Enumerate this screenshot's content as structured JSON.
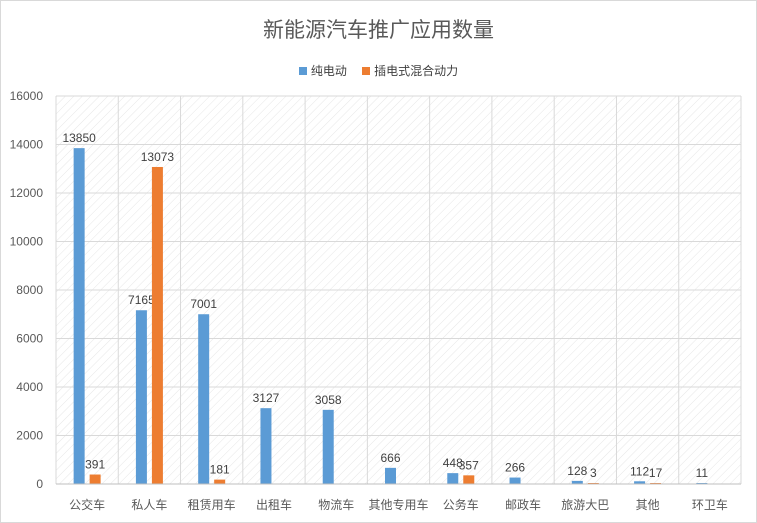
{
  "colors": {
    "series1": "#5b9bd5",
    "series2": "#ed7d31",
    "grid": "#d9d9d9",
    "text": "#595959"
  },
  "chart_data": {
    "type": "bar",
    "title": "新能源汽车推广应用数量",
    "categories": [
      "公交车",
      "私人车",
      "租赁用车",
      "出租车",
      "物流车",
      "其他专用车",
      "公务车",
      "邮政车",
      "旅游大巴",
      "其他",
      "环卫车"
    ],
    "series": [
      {
        "name": "纯电动",
        "values": [
          13850,
          7165,
          7001,
          3127,
          3058,
          666,
          448,
          266,
          128,
          112,
          11
        ]
      },
      {
        "name": "插电式混合动力",
        "values": [
          391,
          13073,
          181,
          null,
          null,
          null,
          357,
          null,
          3,
          17,
          null
        ]
      }
    ],
    "ylim": [
      0,
      16000
    ],
    "yticks": [
      0,
      2000,
      4000,
      6000,
      8000,
      10000,
      12000,
      14000,
      16000
    ],
    "grid": true,
    "legend_position": "top"
  }
}
